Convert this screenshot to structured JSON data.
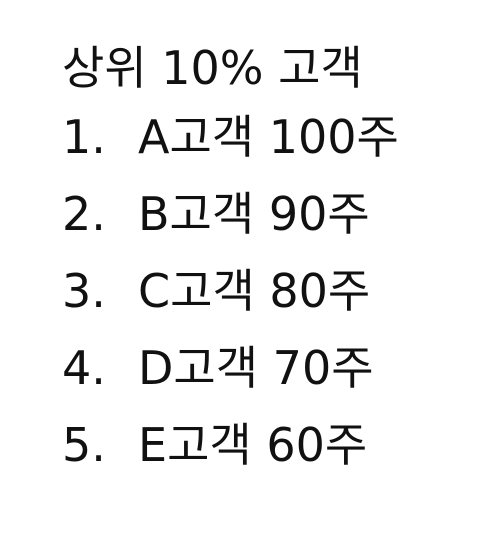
{
  "document": {
    "title": "상위 10% 고객",
    "items": [
      {
        "number": "1.",
        "text": "A고객 100주"
      },
      {
        "number": "2.",
        "text": "B고객 90주"
      },
      {
        "number": "3.",
        "text": "C고객 80주"
      },
      {
        "number": "4.",
        "text": "D고객 70주"
      },
      {
        "number": "5.",
        "text": "E고객 60주"
      }
    ]
  }
}
